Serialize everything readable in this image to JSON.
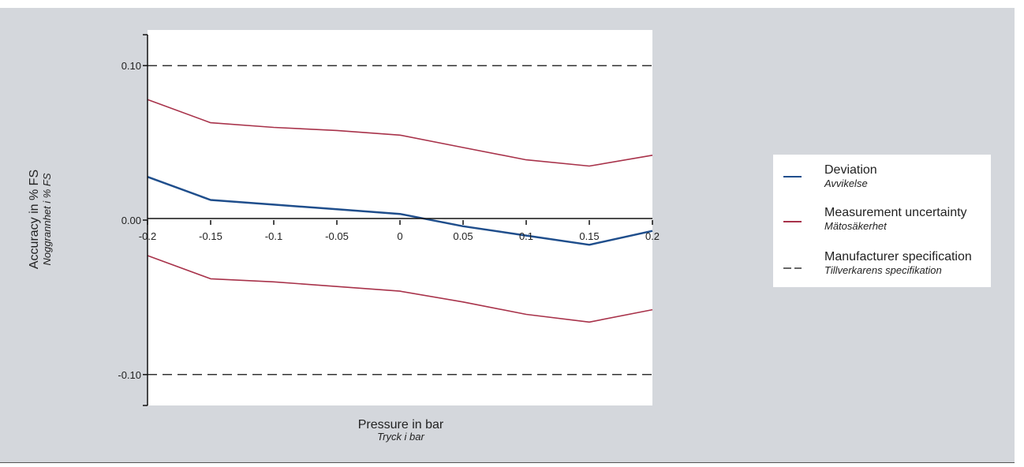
{
  "chart_data": {
    "type": "line",
    "x": [
      -0.2,
      -0.15,
      -0.1,
      -0.05,
      0,
      0.05,
      0.1,
      0.15,
      0.2
    ],
    "x_tick_labels": [
      "-0.2",
      "-0.15",
      "-0.1",
      "-0.05",
      "0",
      "0.05",
      "0.1",
      "0.15",
      "0.2"
    ],
    "y_tick_values": [
      0.1,
      0.0,
      -0.1
    ],
    "y_tick_labels": [
      "0.10",
      "0.00",
      "-0.10"
    ],
    "xlim": [
      -0.2,
      0.2
    ],
    "ylim": [
      -0.12,
      0.12
    ],
    "xlabel": "Pressure in bar",
    "xlabel_sub": "Tryck i bar",
    "ylabel": "Accuracy in % FS",
    "ylabel_sub": "Noggrannhet i % FS",
    "grid": false,
    "legend_position": "right",
    "series": [
      {
        "name": "Deviation",
        "name_sub": "Avvikelse",
        "color": "#1f4e8c",
        "style": "solid",
        "values": [
          0.028,
          0.013,
          0.01,
          0.007,
          0.004,
          -0.004,
          -0.01,
          -0.016,
          -0.007
        ]
      },
      {
        "name": "Measurement uncertainty",
        "name_sub": "Mätosäkerhet",
        "color": "#a8324a",
        "style": "solid",
        "values": [
          0.078,
          0.063,
          0.06,
          0.058,
          0.055,
          0.047,
          0.039,
          0.035,
          0.042
        ]
      },
      {
        "name": "",
        "color": "#a8324a",
        "style": "solid",
        "values": [
          -0.023,
          -0.038,
          -0.04,
          -0.043,
          -0.046,
          -0.053,
          -0.061,
          -0.066,
          -0.058
        ]
      },
      {
        "name": "Manufacturer specification",
        "name_sub": "Tillverkarens specifikation",
        "color": "#333333",
        "style": "dashed",
        "values": [
          0.1,
          0.1,
          0.1,
          0.1,
          0.1,
          0.1,
          0.1,
          0.1,
          0.1
        ]
      },
      {
        "name": "",
        "color": "#333333",
        "style": "dashed",
        "values": [
          -0.1,
          -0.1,
          -0.1,
          -0.1,
          -0.1,
          -0.1,
          -0.1,
          -0.1,
          -0.1
        ]
      }
    ]
  }
}
